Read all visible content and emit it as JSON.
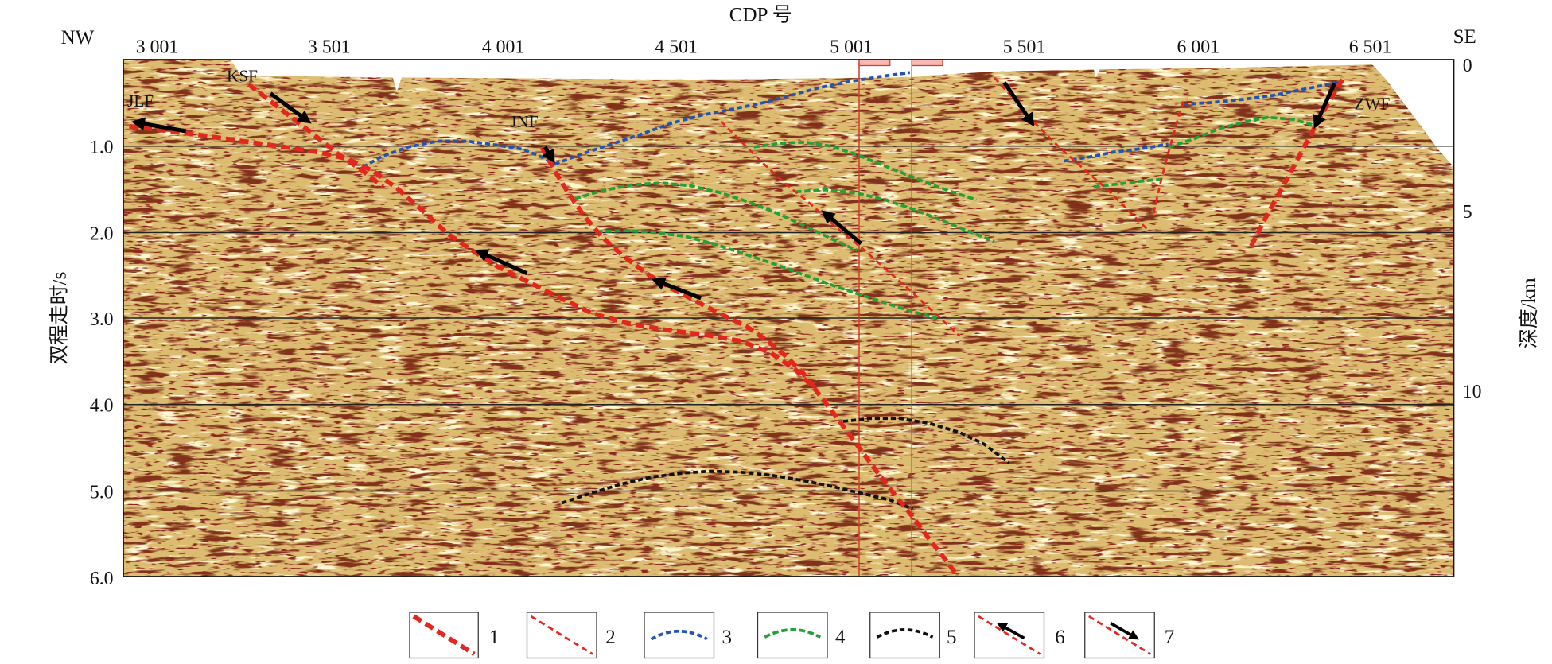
{
  "top_axis": {
    "title": "CDP 号",
    "left_end": "NW",
    "right_end": "SE",
    "ticks": [
      "3 001",
      "3 501",
      "4 001",
      "4 501",
      "5 001",
      "5 501",
      "6 001",
      "6 501"
    ]
  },
  "left_axis": {
    "title": "双程走时/s",
    "ticks": [
      "1.0",
      "2.0",
      "3.0",
      "4.0",
      "5.0",
      "6.0"
    ]
  },
  "right_axis": {
    "title": "深度/km",
    "ticks": [
      "0",
      "5",
      "10"
    ]
  },
  "fault_labels": {
    "jlf": "JLF",
    "ksf": "KSF",
    "jnf": "JNF",
    "zwf": "ZWF"
  },
  "legend": [
    {
      "label": "1",
      "color": "#e3271f"
    },
    {
      "label": "2",
      "color": "#e3271f"
    },
    {
      "label": "3",
      "color": "#2155b0"
    },
    {
      "label": "4",
      "color": "#23a036"
    },
    {
      "label": "5",
      "color": "#111111"
    },
    {
      "label": "6",
      "color": "#e3271f"
    },
    {
      "label": "7",
      "color": "#e3271f"
    }
  ],
  "colors": {
    "section_base": "#dcbc70",
    "section_dark": "#7f3319",
    "gridline": "#222222",
    "cdp_marker": "#d33a2c"
  }
}
